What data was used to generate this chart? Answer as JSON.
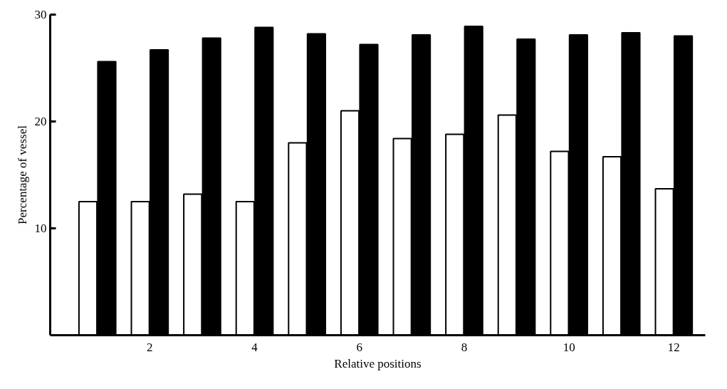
{
  "chart_data": {
    "type": "bar",
    "xlabel": "Relative positions",
    "ylabel": "Percentage of vessel",
    "categories": [
      null,
      "2",
      null,
      "4",
      null,
      "6",
      null,
      "8",
      null,
      "10",
      null,
      "12"
    ],
    "series": [
      {
        "color": "#ffffff",
        "values": [
          12.5,
          12.5,
          13.2,
          12.5,
          18.0,
          21.0,
          18.4,
          18.8,
          20.6,
          17.2,
          16.7,
          13.7
        ]
      },
      {
        "color": "#000000",
        "values": [
          25.6,
          26.7,
          27.8,
          28.8,
          28.2,
          27.2,
          28.1,
          28.9,
          27.7,
          28.1,
          28.3,
          28.0
        ]
      }
    ],
    "ylim": [
      0,
      30
    ],
    "yticks": [
      10,
      20,
      30
    ],
    "grid": false
  }
}
